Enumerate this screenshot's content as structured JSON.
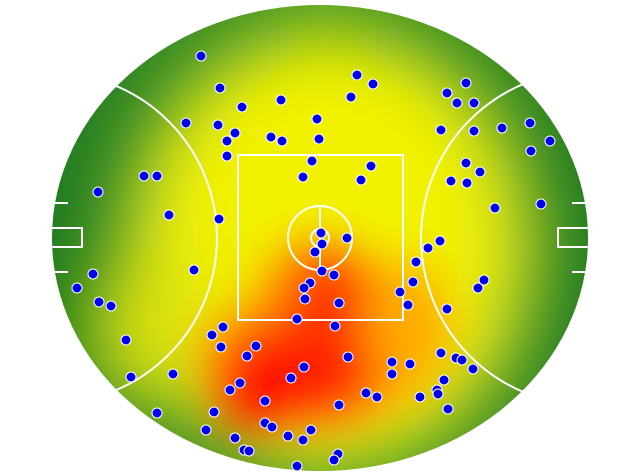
{
  "chart_data": {
    "type": "scatter",
    "color": "#0000ee",
    "xlim": [
      0,
      540
    ],
    "ylim": [
      0,
      465
    ],
    "y_inverted": true,
    "x": [
      151,
      307,
      323,
      416,
      170,
      301,
      397,
      407,
      424,
      192,
      231,
      267,
      136,
      168,
      185,
      177,
      221,
      232,
      269,
      391,
      424,
      452,
      480,
      500,
      481,
      177,
      262,
      416,
      430,
      321,
      253,
      311,
      401,
      417,
      94,
      107,
      48,
      119,
      169,
      445,
      491,
      297,
      271,
      272,
      265,
      390,
      378,
      366,
      144,
      43,
      272,
      284,
      260,
      254,
      363,
      434,
      428,
      27,
      49,
      61,
      350,
      358,
      289,
      255,
      397,
      247,
      173,
      162,
      285,
      76,
      171,
      206,
      197,
      298,
      391,
      406,
      412,
      342,
      360,
      254,
      423,
      241,
      342,
      81,
      123,
      190,
      180,
      394,
      387,
      316,
      327,
      215,
      289,
      370,
      388,
      398,
      107,
      164,
      215,
      222,
      261,
      156,
      185,
      238,
      253,
      194,
      199,
      288,
      284,
      247
    ],
    "y": [
      51,
      70,
      79,
      78,
      83,
      92,
      88,
      98,
      98,
      102,
      95,
      114,
      118,
      120,
      128,
      136,
      132,
      136,
      134,
      125,
      126,
      123,
      118,
      136,
      146,
      151,
      156,
      158,
      167,
      161,
      172,
      175,
      176,
      178,
      171,
      171,
      187,
      210,
      214,
      203,
      199,
      233,
      228,
      239,
      247,
      236,
      243,
      257,
      265,
      269,
      266,
      270,
      278,
      283,
      277,
      275,
      283,
      283,
      297,
      301,
      287,
      300,
      298,
      294,
      304,
      314,
      322,
      330,
      321,
      335,
      342,
      341,
      351,
      352,
      348,
      353,
      355,
      357,
      359,
      362,
      364,
      373,
      369,
      372,
      369,
      378,
      385,
      375,
      385,
      388,
      392,
      396,
      400,
      392,
      389,
      404,
      408,
      407,
      418,
      422,
      425,
      425,
      433,
      431,
      435,
      445,
      446,
      449,
      455,
      461
    ]
  }
}
